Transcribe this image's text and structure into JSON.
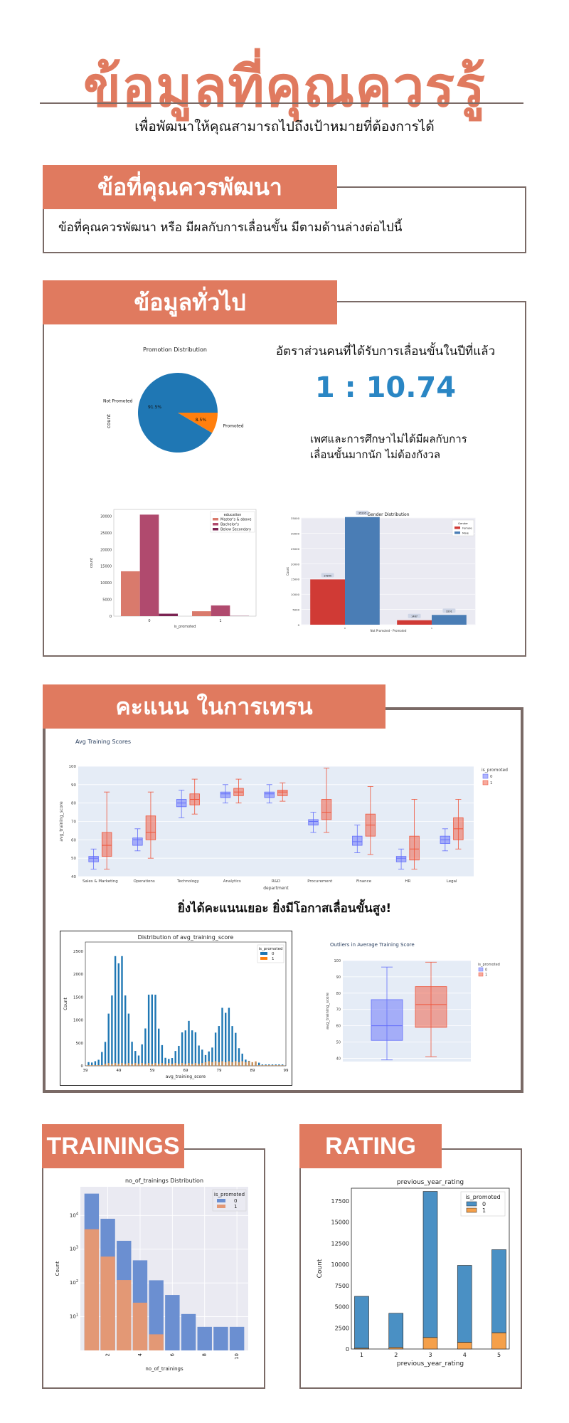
{
  "page": {
    "title": "ข้อมูลที่คุณควรรู้",
    "subtitle": "เพื่อพัฒนาให้คุณสามารถไปถึงเป้าหมายที่ต้องการได้"
  },
  "section_develop": {
    "banner": "ข้อที่คุณควรพัฒนา",
    "text": "ข้อที่คุณควรพัฒนา หรือ มีผลกับการเลื่อนขั้น มีตามด้านล่างต่อไปนี้"
  },
  "section_general": {
    "banner": "ข้อมูลทั่วไป",
    "ratio_heading": "อัตราส่วนคนที่ได้รับการเลื่อนขั้นในปีที่แล้ว",
    "ratio_value": "1 : 10.74",
    "note_line1": "เพศและการศึกษาไม่ได้มีผลกับการ",
    "note_line2": "เลื่อนขั้นมากนัก ไม่ต้องกังวล"
  },
  "section_training": {
    "banner": "คะแนน ในการเทรน",
    "insight": "ยิ่งได้คะแนนเยอะ ยิ่งมีโอกาสเลื่อนขั้นสูง!"
  },
  "section_trainings": {
    "banner": "TRAININGS"
  },
  "section_rating": {
    "banner": "RATING"
  },
  "colors": {
    "accent": "#e07a5f",
    "border": "#7a6a66",
    "blue": "#1f77b4",
    "orange": "#ff7f0e",
    "plotly_blue": "#636efa",
    "plotly_red": "#ef553b",
    "ratio_blue": "#2a86c4"
  },
  "chart_data": [
    {
      "id": "promotion_pie",
      "type": "pie",
      "title": "Promotion Distribution",
      "ylabel": "count",
      "labels": [
        "Not Promoted",
        "Promoted"
      ],
      "values": [
        91.5,
        8.5
      ],
      "value_labels": [
        "91.5%",
        "8.5%"
      ],
      "colors": [
        "#1f77b4",
        "#ff7f0e"
      ]
    },
    {
      "id": "education_bar",
      "type": "bar",
      "xlabel": "is_promoted",
      "ylabel": "count",
      "categories": [
        "0",
        "1"
      ],
      "legend_title": "education",
      "legend_position": "top-right",
      "series": [
        {
          "name": "Master's & above",
          "values": [
            13454,
            1471
          ],
          "color": "#d97a6c"
        },
        {
          "name": "Bachelor's",
          "values": [
            30446,
            3223
          ],
          "color": "#b04a6e"
        },
        {
          "name": "Below Secondary",
          "values": [
            738,
            67
          ],
          "color": "#7b2352"
        }
      ],
      "ylim": [
        0,
        32000
      ],
      "yticks": [
        0,
        5000,
        10000,
        15000,
        20000,
        25000,
        30000
      ]
    },
    {
      "id": "gender_bar",
      "type": "bar",
      "title": "Gender Distribution",
      "xlabel": "Not Promoted - Promoted",
      "ylabel": "Count",
      "categories": [
        "0",
        "1"
      ],
      "legend_title": "Gender",
      "legend_position": "top-right",
      "series": [
        {
          "name": "Female",
          "values": [
            14845,
            1467
          ],
          "color": "#d03a35"
        },
        {
          "name": "Male",
          "values": [
            35295,
            3201
          ],
          "color": "#4a7db5"
        }
      ],
      "data_labels": [
        "14845",
        "35295",
        "1467",
        "3201"
      ],
      "ylim": [
        0,
        35000
      ],
      "yticks": [
        0,
        5000,
        10000,
        15000,
        20000,
        25000,
        30000,
        35000
      ]
    },
    {
      "id": "avg_training_box_by_department",
      "type": "box",
      "title": "Avg Training Scores",
      "xlabel": "department",
      "ylabel": "avg_training_score",
      "legend_title": "is_promoted",
      "legend": [
        "0",
        "1"
      ],
      "categories": [
        "Sales & Marketing",
        "Operations",
        "Technology",
        "Analytics",
        "R&D",
        "Procurement",
        "Finance",
        "HR",
        "Legal"
      ],
      "ylim": [
        40,
        100
      ],
      "yticks": [
        40,
        50,
        60,
        70,
        80,
        90,
        100
      ],
      "series": [
        {
          "name": "0",
          "boxes": [
            [
              44,
              48,
              50,
              51,
              55
            ],
            [
              54,
              57,
              60,
              61,
              66
            ],
            [
              72,
              78,
              80,
              82,
              87
            ],
            [
              80,
              83,
              85,
              86,
              90
            ],
            [
              80,
              83,
              85,
              86,
              90
            ],
            [
              64,
              68,
              70,
              71,
              75
            ],
            [
              53,
              57,
              59,
              62,
              68
            ],
            [
              44,
              48,
              50,
              51,
              55
            ],
            [
              54,
              58,
              60,
              62,
              66
            ]
          ]
        },
        {
          "name": "1",
          "boxes": [
            [
              44,
              51,
              57,
              64,
              86
            ],
            [
              50,
              60,
              64,
              73,
              86
            ],
            [
              74,
              79,
              82,
              85,
              93
            ],
            [
              80,
              84,
              86,
              88,
              93
            ],
            [
              81,
              84,
              86,
              87,
              91
            ],
            [
              64,
              71,
              75,
              82,
              99
            ],
            [
              52,
              62,
              68,
              74,
              89
            ],
            [
              44,
              49,
              55,
              62,
              82
            ],
            [
              55,
              60,
              66,
              72,
              82
            ]
          ]
        }
      ]
    },
    {
      "id": "avg_training_hist",
      "type": "bar",
      "title": "Distribution of avg_training_score",
      "xlabel": "avg_training_score",
      "ylabel": "Count",
      "legend_title": "is_promoted",
      "legend": [
        "0",
        "1"
      ],
      "xticks": [
        39,
        49,
        59,
        69,
        79,
        89,
        99
      ],
      "yticks": [
        0,
        500,
        1000,
        1500,
        2000,
        2500
      ],
      "ylim": [
        0,
        2700
      ]
    },
    {
      "id": "avg_training_outliers",
      "type": "box",
      "title": "Outliers in Average Training Score",
      "ylabel": "avg_training_score",
      "legend_title": "is_promoted",
      "legend": [
        "0",
        "1"
      ],
      "ylim": [
        38,
        100
      ],
      "yticks": [
        40,
        50,
        60,
        70,
        80,
        90,
        100
      ],
      "boxes": [
        [
          39,
          51,
          60,
          76,
          96
        ],
        [
          41,
          59,
          73,
          84,
          99
        ]
      ]
    },
    {
      "id": "no_of_trainings",
      "type": "bar",
      "title": "no_of_trainings Distribution",
      "xlabel": "no_of_trainings",
      "ylabel": "Count",
      "yscale": "log",
      "legend_title": "is_promoted",
      "legend": [
        "0",
        "1"
      ],
      "categories": [
        1,
        2,
        3,
        4,
        5,
        6,
        7,
        8,
        9,
        10
      ],
      "xticks": [
        2,
        4,
        6,
        8,
        10
      ],
      "series": [
        {
          "name": "0",
          "values": [
            40468,
            7382,
            1654,
            442,
            117,
            44,
            12,
            5,
            5,
            5
          ]
        },
        {
          "name": "1",
          "values": [
            3910,
            605,
            122,
            26,
            3,
            0,
            0,
            0,
            0,
            0
          ]
        }
      ]
    },
    {
      "id": "previous_year_rating",
      "type": "bar",
      "title": "previous_year_rating",
      "xlabel": "previous_year_rating",
      "ylabel": "Count",
      "legend_title": "is_promoted",
      "legend": [
        "0",
        "1"
      ],
      "categories": [
        1,
        2,
        3,
        4,
        5
      ],
      "series": [
        {
          "name": "0",
          "values": [
            6135,
            4044,
            17263,
            9093,
            9820
          ]
        },
        {
          "name": "1",
          "values": [
            88,
            181,
            1355,
            784,
            1921
          ]
        }
      ],
      "ylim": [
        0,
        19000
      ],
      "yticks": [
        0,
        2500,
        5000,
        7500,
        10000,
        12500,
        15000,
        17500
      ]
    }
  ]
}
